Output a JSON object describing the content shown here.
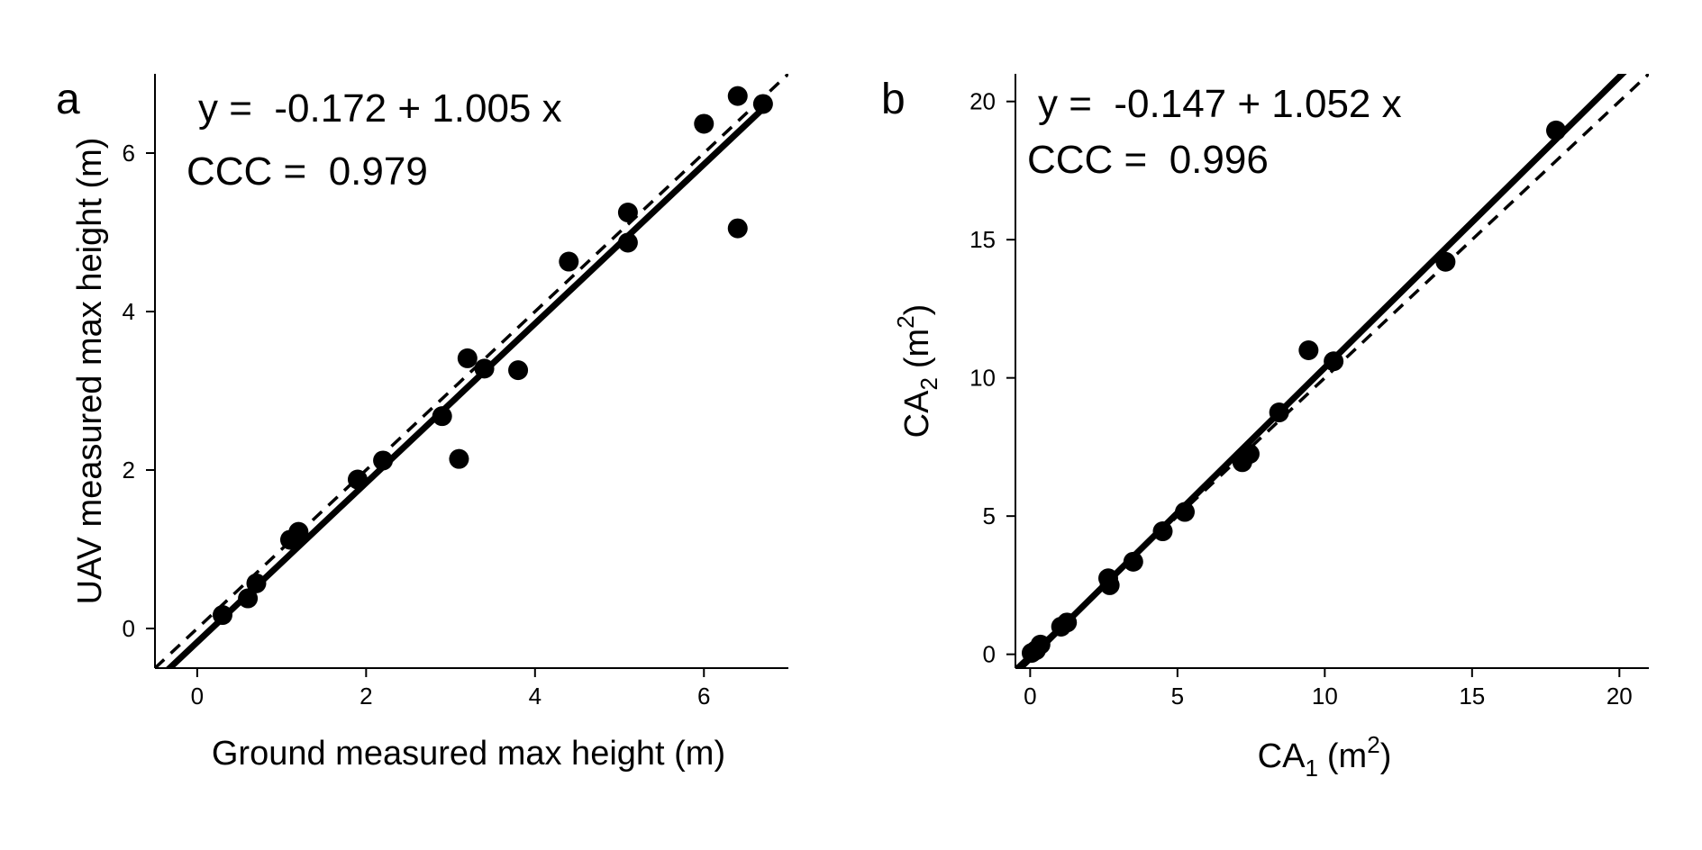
{
  "chart_data": [
    {
      "type": "scatter",
      "panel_label": "a",
      "equation": "y =  -0.172 + 1.005 x",
      "ccc": "CCC =  0.979",
      "xlabel": "Ground measured max height (m)",
      "ylabel": "UAV measured max height (m)",
      "xlim": [
        -0.5,
        7.0
      ],
      "ylim": [
        -0.5,
        7.0
      ],
      "x_ticks": [
        0,
        2,
        4,
        6
      ],
      "y_ticks": [
        0,
        2,
        4,
        6
      ],
      "grid": false,
      "regression_line": {
        "intercept": -0.172,
        "slope": 1.005
      },
      "identity_line": {
        "intercept": 0,
        "slope": 1,
        "style": "dashed"
      },
      "points": [
        {
          "x": 0.3,
          "y": 0.17
        },
        {
          "x": 0.6,
          "y": 0.38
        },
        {
          "x": 0.7,
          "y": 0.57
        },
        {
          "x": 1.1,
          "y": 1.12
        },
        {
          "x": 1.2,
          "y": 1.22
        },
        {
          "x": 1.9,
          "y": 1.88
        },
        {
          "x": 2.2,
          "y": 2.12
        },
        {
          "x": 2.9,
          "y": 2.68
        },
        {
          "x": 3.1,
          "y": 2.14
        },
        {
          "x": 3.2,
          "y": 3.41
        },
        {
          "x": 3.4,
          "y": 3.28
        },
        {
          "x": 3.8,
          "y": 3.26
        },
        {
          "x": 4.4,
          "y": 4.63
        },
        {
          "x": 5.1,
          "y": 5.25
        },
        {
          "x": 5.1,
          "y": 4.87
        },
        {
          "x": 6.0,
          "y": 6.37
        },
        {
          "x": 6.4,
          "y": 6.72
        },
        {
          "x": 6.4,
          "y": 5.05
        },
        {
          "x": 6.7,
          "y": 6.62
        }
      ]
    },
    {
      "type": "scatter",
      "panel_label": "b",
      "equation": "y =  -0.147 + 1.052 x",
      "ccc": "CCC =  0.996",
      "xlabel_main": "CA",
      "xlabel_sub": "1",
      "xlabel_unit_open": "(m",
      "xlabel_unit_sup": "2",
      "xlabel_unit_close": ")",
      "ylabel_main": "CA",
      "ylabel_sub": "2",
      "ylabel_unit_open": "(m",
      "ylabel_unit_sup": "2",
      "ylabel_unit_close": ")",
      "xlim": [
        -0.5,
        21.0
      ],
      "ylim": [
        -0.5,
        21.0
      ],
      "x_ticks": [
        0,
        5,
        10,
        15,
        20
      ],
      "y_ticks": [
        0,
        5,
        10,
        15,
        20
      ],
      "grid": false,
      "regression_line": {
        "intercept": -0.147,
        "slope": 1.052
      },
      "identity_line": {
        "intercept": 0,
        "slope": 1,
        "style": "dashed"
      },
      "points": [
        {
          "x": 0.05,
          "y": 0.05
        },
        {
          "x": 0.2,
          "y": 0.15
        },
        {
          "x": 0.35,
          "y": 0.35
        },
        {
          "x": 1.05,
          "y": 1.0
        },
        {
          "x": 1.25,
          "y": 1.15
        },
        {
          "x": 2.65,
          "y": 2.75
        },
        {
          "x": 2.7,
          "y": 2.5
        },
        {
          "x": 3.5,
          "y": 3.35
        },
        {
          "x": 4.5,
          "y": 4.45
        },
        {
          "x": 5.25,
          "y": 5.15
        },
        {
          "x": 7.2,
          "y": 6.95
        },
        {
          "x": 7.45,
          "y": 7.25
        },
        {
          "x": 8.45,
          "y": 8.75
        },
        {
          "x": 9.45,
          "y": 11.0
        },
        {
          "x": 10.3,
          "y": 10.6
        },
        {
          "x": 14.1,
          "y": 14.2
        },
        {
          "x": 17.85,
          "y": 18.95
        }
      ]
    }
  ]
}
